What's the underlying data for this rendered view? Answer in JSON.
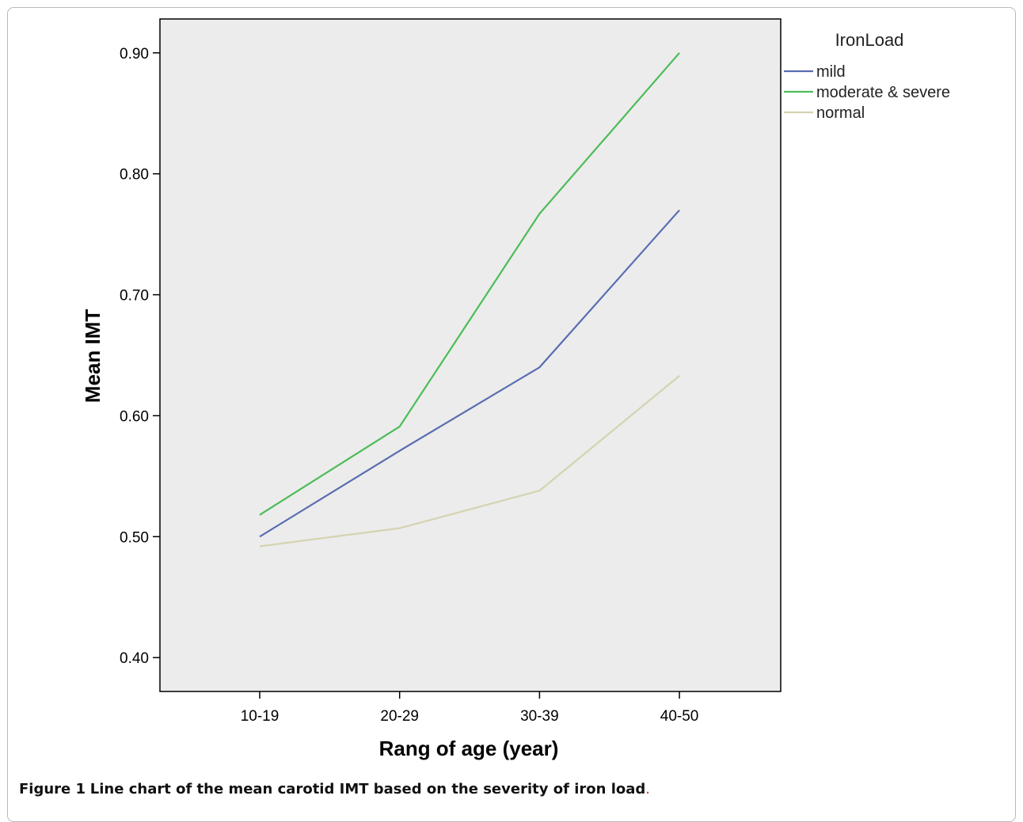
{
  "chart_data": {
    "type": "line",
    "xlabel": "Rang of age (year)",
    "ylabel": "Mean IMT",
    "categories": [
      "10-19",
      "20-29",
      "30-39",
      "40-50"
    ],
    "ylim": [
      0.372,
      0.928
    ],
    "yticks": [
      "0.40",
      "0.50",
      "0.60",
      "0.70",
      "0.80",
      "0.90"
    ],
    "ytick_values": [
      0.4,
      0.5,
      0.6,
      0.7,
      0.8,
      0.9
    ],
    "grid": false,
    "legend": {
      "title": "IronLoad",
      "placement": "right, outside plot"
    },
    "series": [
      {
        "name": "mild",
        "color": "#5a6db0",
        "values": [
          0.5,
          0.571,
          0.64,
          0.77
        ]
      },
      {
        "name": "moderate & severe",
        "color": "#4cbc58",
        "values": [
          0.518,
          0.591,
          0.767,
          0.9
        ]
      },
      {
        "name": "normal",
        "color": "#d4d3b1",
        "values": [
          0.492,
          0.507,
          0.538,
          0.633
        ]
      }
    ],
    "plot_background": "#ececec"
  },
  "caption": {
    "label": "Figure 1",
    "text": "Line chart of the mean carotid IMT based on the severity of iron load",
    "period": "."
  }
}
